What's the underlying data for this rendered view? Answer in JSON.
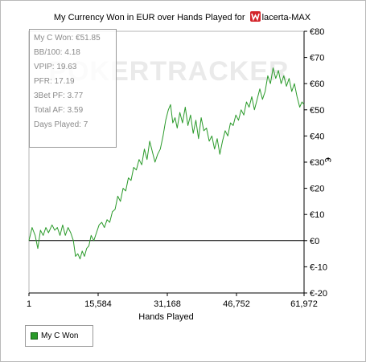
{
  "title": {
    "text": "My Currency Won in EUR over Hands Played for",
    "player": "lacerta-MAX"
  },
  "watermark": "POKERTRACKER",
  "stats": [
    "My C Won: €51.85",
    "BB/100: 4.18",
    "VPIP: 19.63",
    "PFR: 17.19",
    "3Bet PF: 3.77",
    "Total AF: 3.59",
    "Days Played: 7"
  ],
  "legend": {
    "label": "My C Won",
    "color": "#2a9a2a"
  },
  "chart_data": {
    "type": "line",
    "xlabel": "Hands Played",
    "ylabel": "€",
    "xlim": [
      1,
      61972
    ],
    "ylim": [
      -20,
      80
    ],
    "x_ticks": [
      "1",
      "15,584",
      "31,168",
      "46,752",
      "61,972"
    ],
    "y_ticks": [
      "€80",
      "€70",
      "€60",
      "€50",
      "€40",
      "€30",
      "€20",
      "€10",
      "€0",
      "€-10",
      "€-20"
    ],
    "grid": false,
    "legend_position": "bottom-left",
    "series": [
      {
        "name": "My C Won",
        "color": "#2a9a2a",
        "x": [
          1,
          700,
          1400,
          2000,
          2600,
          3200,
          3800,
          4400,
          5200,
          5800,
          6400,
          7000,
          7600,
          8200,
          8800,
          9400,
          10000,
          10500,
          11000,
          11500,
          12000,
          12500,
          13000,
          13500,
          14000,
          14600,
          15200,
          15800,
          16400,
          17000,
          17600,
          18200,
          18800,
          19400,
          20000,
          20600,
          21200,
          21800,
          22400,
          23000,
          23600,
          24200,
          24800,
          25400,
          26000,
          26600,
          27200,
          27800,
          28400,
          29000,
          29600,
          30200,
          30800,
          31400,
          31900,
          32400,
          32900,
          33400,
          34000,
          34600,
          35200,
          35800,
          36400,
          37000,
          37600,
          38200,
          38800,
          39400,
          40000,
          40600,
          41200,
          41800,
          42400,
          43000,
          43600,
          44200,
          44800,
          45400,
          46000,
          46600,
          47200,
          47800,
          48400,
          49000,
          49600,
          50200,
          50800,
          51400,
          52000,
          52600,
          53200,
          53800,
          54400,
          55000,
          55600,
          56200,
          56800,
          57400,
          58000,
          58600,
          59200,
          59800,
          60400,
          61000,
          61500,
          61972
        ],
        "values": [
          0,
          5,
          2,
          -3,
          4,
          2,
          5,
          3,
          6,
          4,
          5,
          2,
          6,
          2,
          5,
          3,
          0,
          -6,
          -5,
          -7,
          -4,
          -6,
          -3,
          -2,
          2,
          0,
          3,
          6,
          7,
          5,
          8,
          7,
          11,
          12,
          17,
          15,
          20,
          19,
          24,
          23,
          28,
          27,
          31,
          29,
          35,
          31,
          38,
          34,
          30,
          33,
          35,
          40,
          46,
          50,
          52,
          45,
          47,
          43,
          49,
          45,
          51,
          44,
          48,
          41,
          46,
          39,
          47,
          42,
          43,
          38,
          40,
          35,
          39,
          33,
          38,
          42,
          40,
          45,
          44,
          48,
          46,
          50,
          48,
          53,
          51,
          55,
          50,
          54,
          58,
          54,
          57,
          63,
          60,
          66,
          62,
          65,
          60,
          63,
          59,
          62,
          57,
          60,
          55,
          51,
          53,
          52
        ]
      }
    ]
  }
}
